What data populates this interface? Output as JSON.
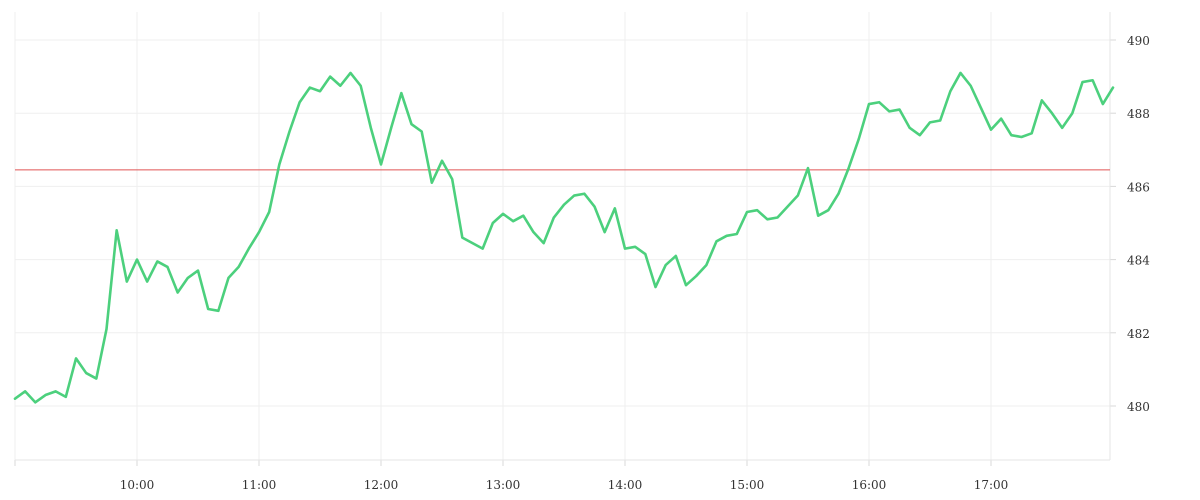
{
  "chart_data": {
    "type": "line",
    "title": "",
    "xlabel": "",
    "ylabel": "",
    "x_ticks": [
      "10:00",
      "11:00",
      "12:00",
      "13:00",
      "14:00",
      "15:00",
      "16:00",
      "17:00"
    ],
    "y_ticks": [
      "480",
      "482",
      "484",
      "486",
      "488",
      "490"
    ],
    "ylim": [
      478.6,
      490.8
    ],
    "y_axis_position": "right",
    "grid": true,
    "colors": {
      "series": "#4cd07d",
      "reference_line": "#e05555",
      "grid": "#efefef"
    },
    "reference_line": {
      "y": 486.45
    },
    "series": [
      {
        "x": [
          "09:00",
          "09:05",
          "09:10",
          "09:15",
          "09:20",
          "09:25",
          "09:30",
          "09:35",
          "09:40",
          "09:45",
          "09:50",
          "09:55",
          "10:00",
          "10:05",
          "10:10",
          "10:15",
          "10:20",
          "10:25",
          "10:30",
          "10:35",
          "10:40",
          "10:45",
          "10:50",
          "10:55",
          "11:00",
          "11:05",
          "11:10",
          "11:15",
          "11:20",
          "11:25",
          "11:30",
          "11:35",
          "11:40",
          "11:45",
          "11:50",
          "11:55",
          "12:00",
          "12:05",
          "12:10",
          "12:15",
          "12:20",
          "12:25",
          "12:30",
          "12:35",
          "12:40",
          "12:45",
          "12:50",
          "12:55",
          "13:00",
          "13:05",
          "13:10",
          "13:15",
          "13:20",
          "13:25",
          "13:30",
          "13:35",
          "13:40",
          "13:45",
          "13:50",
          "13:55",
          "14:00",
          "14:05",
          "14:10",
          "14:15",
          "14:20",
          "14:25",
          "14:30",
          "14:35",
          "14:40",
          "14:45",
          "14:50",
          "14:55",
          "15:00",
          "15:05",
          "15:10",
          "15:15",
          "15:20",
          "15:25",
          "15:30",
          "15:35",
          "15:40",
          "15:45",
          "15:50",
          "15:55",
          "16:00",
          "16:05",
          "16:10",
          "16:15",
          "16:20",
          "16:25",
          "16:30",
          "16:35",
          "16:40",
          "16:45",
          "16:50",
          "16:55",
          "17:00",
          "17:05",
          "17:10",
          "17:15",
          "17:20",
          "17:25",
          "17:30",
          "17:35",
          "17:40",
          "17:45",
          "17:50",
          "17:55",
          "18:00"
        ],
        "values": [
          480.2,
          480.4,
          480.1,
          480.3,
          480.4,
          480.25,
          481.3,
          480.9,
          480.75,
          482.1,
          484.8,
          483.4,
          484.0,
          483.4,
          483.95,
          483.8,
          483.1,
          483.5,
          483.7,
          482.65,
          482.6,
          483.5,
          483.8,
          484.3,
          484.75,
          485.3,
          486.6,
          487.5,
          488.3,
          488.7,
          488.6,
          489.0,
          488.75,
          489.1,
          488.75,
          487.6,
          486.6,
          487.6,
          488.55,
          487.7,
          487.5,
          486.1,
          486.7,
          486.2,
          484.6,
          484.45,
          484.3,
          485.0,
          485.25,
          485.05,
          485.2,
          484.75,
          484.45,
          485.15,
          485.5,
          485.75,
          485.8,
          485.45,
          484.75,
          485.4,
          484.3,
          484.35,
          484.15,
          483.25,
          483.85,
          484.1,
          483.3,
          483.55,
          483.85,
          484.5,
          484.65,
          484.7,
          485.3,
          485.35,
          485.1,
          485.15,
          485.45,
          485.75,
          486.5,
          485.2,
          485.35,
          485.8,
          486.5,
          487.3,
          488.25,
          488.3,
          488.05,
          488.1,
          487.6,
          487.4,
          487.75,
          487.8,
          488.6,
          489.1,
          488.75,
          488.15,
          487.55,
          487.85,
          487.4,
          487.35,
          487.45,
          488.35,
          488.0,
          487.6,
          488.0,
          488.85,
          488.9,
          488.25,
          488.7
        ]
      }
    ]
  }
}
